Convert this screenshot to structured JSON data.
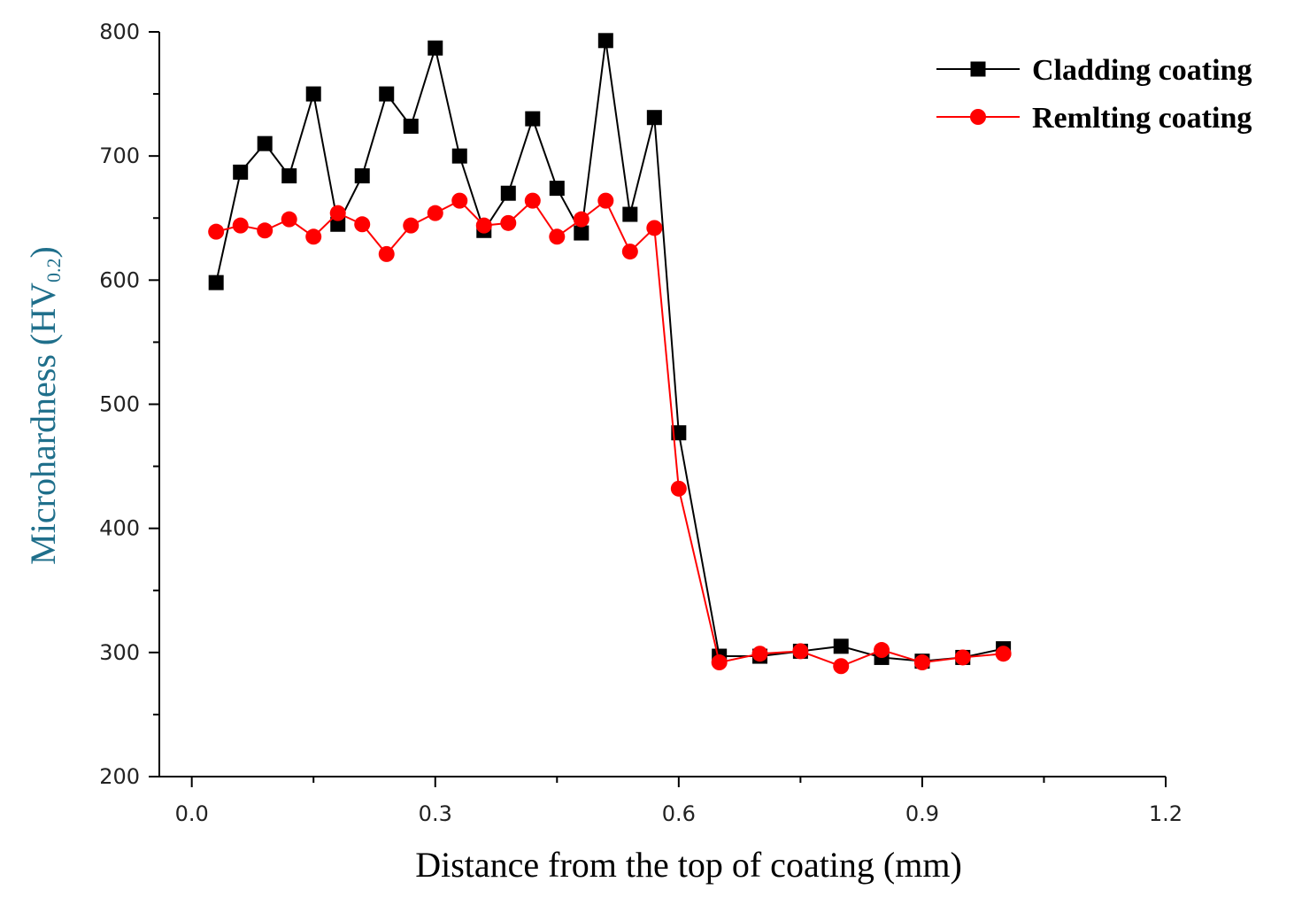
{
  "chart_data": {
    "type": "line",
    "title": "",
    "xlabel": "Distance from the top of coating (mm)",
    "ylabel": "Microhardness (HV",
    "ylabel_subscript": "0.2",
    "ylabel_suffix": ")",
    "xlim": [
      -0.04,
      1.2
    ],
    "ylim": [
      200,
      800
    ],
    "xticks": [
      0.0,
      0.3,
      0.6,
      0.9,
      1.2
    ],
    "xtick_labels": [
      "0.0",
      "0.3",
      "0.6",
      "0.9",
      "1.2"
    ],
    "yticks": [
      200,
      300,
      400,
      500,
      600,
      700,
      800
    ],
    "ytick_labels": [
      "200",
      "300",
      "400",
      "500",
      "600",
      "700",
      "800"
    ],
    "legend_position": "top-right",
    "series": [
      {
        "name": "Cladding coating",
        "color": "#000000",
        "marker": "square",
        "points": [
          [
            0.03,
            598
          ],
          [
            0.06,
            687
          ],
          [
            0.09,
            710
          ],
          [
            0.12,
            684
          ],
          [
            0.15,
            750
          ],
          [
            0.18,
            645
          ],
          [
            0.21,
            684
          ],
          [
            0.24,
            750
          ],
          [
            0.27,
            724
          ],
          [
            0.3,
            787
          ],
          [
            0.33,
            700
          ],
          [
            0.36,
            640
          ],
          [
            0.39,
            670
          ],
          [
            0.42,
            730
          ],
          [
            0.45,
            674
          ],
          [
            0.48,
            638
          ],
          [
            0.51,
            793
          ],
          [
            0.54,
            653
          ],
          [
            0.57,
            731
          ],
          [
            0.6,
            477
          ],
          [
            0.65,
            297
          ],
          [
            0.7,
            297
          ],
          [
            0.75,
            301
          ],
          [
            0.8,
            305
          ],
          [
            0.85,
            296
          ],
          [
            0.9,
            293
          ],
          [
            0.95,
            296
          ],
          [
            1.0,
            303
          ]
        ]
      },
      {
        "name": "Remlting coating",
        "color": "#ff0000",
        "marker": "circle",
        "points": [
          [
            0.03,
            639
          ],
          [
            0.06,
            644
          ],
          [
            0.09,
            640
          ],
          [
            0.12,
            649
          ],
          [
            0.15,
            635
          ],
          [
            0.18,
            654
          ],
          [
            0.21,
            645
          ],
          [
            0.24,
            621
          ],
          [
            0.27,
            644
          ],
          [
            0.3,
            654
          ],
          [
            0.33,
            664
          ],
          [
            0.36,
            644
          ],
          [
            0.39,
            646
          ],
          [
            0.42,
            664
          ],
          [
            0.45,
            635
          ],
          [
            0.48,
            649
          ],
          [
            0.51,
            664
          ],
          [
            0.54,
            623
          ],
          [
            0.57,
            642
          ],
          [
            0.6,
            432
          ],
          [
            0.65,
            292
          ],
          [
            0.7,
            299
          ],
          [
            0.75,
            301
          ],
          [
            0.8,
            289
          ],
          [
            0.85,
            302
          ],
          [
            0.9,
            292
          ],
          [
            0.95,
            296
          ],
          [
            1.0,
            299
          ]
        ]
      }
    ]
  }
}
